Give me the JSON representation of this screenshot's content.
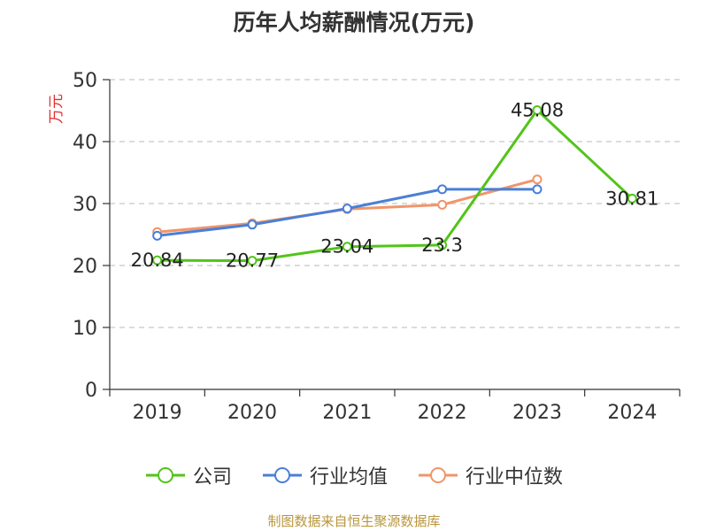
{
  "chart_data": {
    "type": "line",
    "title": "历年人均薪酬情况(万元)",
    "ylabel": "万元",
    "categories": [
      "2019",
      "2020",
      "2021",
      "2022",
      "2023",
      "2024"
    ],
    "ylim": [
      0,
      50
    ],
    "yticks": [
      "0",
      "10",
      "20",
      "30",
      "40",
      "50"
    ],
    "grid": true,
    "legend_position": "bottom",
    "series": [
      {
        "name": "公司",
        "color": "#52c41a",
        "values": [
          20.84,
          20.77,
          23.04,
          23.3,
          45.08,
          30.81
        ],
        "labels": [
          "20.84",
          "20.77",
          "23.04",
          "23.3",
          "45.08",
          "30.81"
        ]
      },
      {
        "name": "行业均值",
        "color": "#4a7fd8",
        "values": [
          24.8,
          26.6,
          29.2,
          32.3,
          32.3,
          null
        ]
      },
      {
        "name": "行业中位数",
        "color": "#f0956a",
        "values": [
          25.4,
          26.8,
          29.1,
          29.8,
          33.9,
          null
        ]
      }
    ]
  },
  "footer": {
    "source": "制图数据来自恒生聚源数据库"
  }
}
